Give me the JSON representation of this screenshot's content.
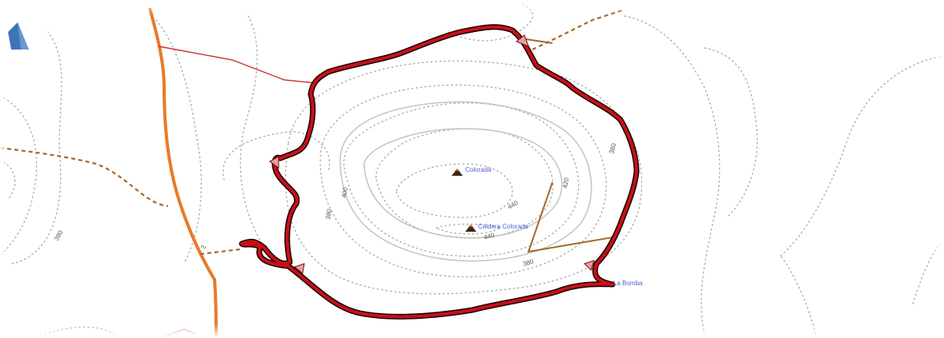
{
  "map": {
    "peaks": [
      {
        "name": "Colorada"
      },
      {
        "name": "Caldera Colorada"
      }
    ],
    "places": [
      {
        "name": "La Bomba"
      }
    ],
    "contour_labels": [
      "400",
      "420",
      "440",
      "380",
      "400",
      "440",
      "420",
      "380",
      "380",
      "380"
    ],
    "road_refs": [
      "2"
    ],
    "icons": [
      "peak-icon",
      "peak-icon",
      "arrow-icon"
    ],
    "colors": {
      "gps_track": "#c80f18",
      "main_road": "#ea7a2a",
      "secondary_road": "#cf2b3a",
      "track": "#a5682d",
      "contour": "#a8a8a8",
      "peak_label": "#5561d6"
    }
  }
}
